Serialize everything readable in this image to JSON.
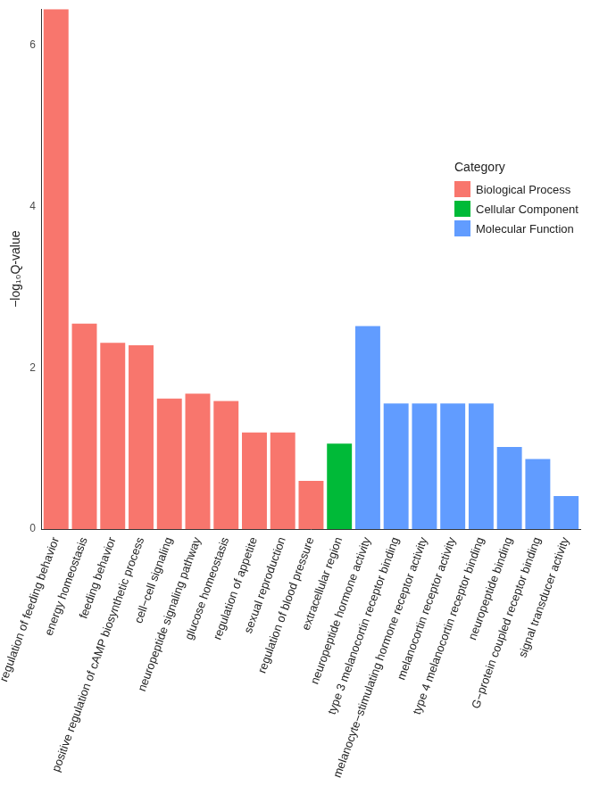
{
  "chart_data": {
    "type": "bar",
    "y_label": "−log₁₀Q-value",
    "legend_title": "Category",
    "categories": [
      "regulation of feeding behavior",
      "energy homeostasis",
      "feeding behavior",
      "positive regulation of cAMP biosynthetic process",
      "cell−cell signaling",
      "neuropeptide signaling pathway",
      "glucose homeostasis",
      "regulation of appetite",
      "sexual reproduction",
      "regulation of blood pressure",
      "extracellular region",
      "neuropeptide hormone activity",
      "type 3 melanocortin receptor binding",
      "melanocyte−stimulating hormone receptor activity",
      "melanocortin receptor activity",
      "type 4 melanocortin receptor binding",
      "neuropeptide binding",
      "G−protein coupled receptor binding",
      "signal transducer activity"
    ],
    "series": [
      {
        "name": "Biological Process",
        "color": "#F8766D",
        "values": [
          6.45,
          2.55,
          2.31,
          2.28,
          1.62,
          1.68,
          1.59,
          1.2,
          1.2,
          0.6,
          null,
          null,
          null,
          null,
          null,
          null,
          null,
          null,
          null
        ]
      },
      {
        "name": "Cellular Component",
        "color": "#00BA38",
        "values": [
          null,
          null,
          null,
          null,
          null,
          null,
          null,
          null,
          null,
          null,
          1.06,
          null,
          null,
          null,
          null,
          null,
          null,
          null,
          null
        ]
      },
      {
        "name": "Molecular Function",
        "color": "#619CFF",
        "values": [
          null,
          null,
          null,
          null,
          null,
          null,
          null,
          null,
          null,
          null,
          null,
          2.52,
          1.56,
          1.56,
          1.56,
          1.56,
          1.02,
          0.87,
          0.41
        ]
      }
    ],
    "ylim": [
      0,
      6.45
    ],
    "yticks": [
      0,
      2,
      4,
      6
    ],
    "grid": false,
    "legend": "right"
  }
}
